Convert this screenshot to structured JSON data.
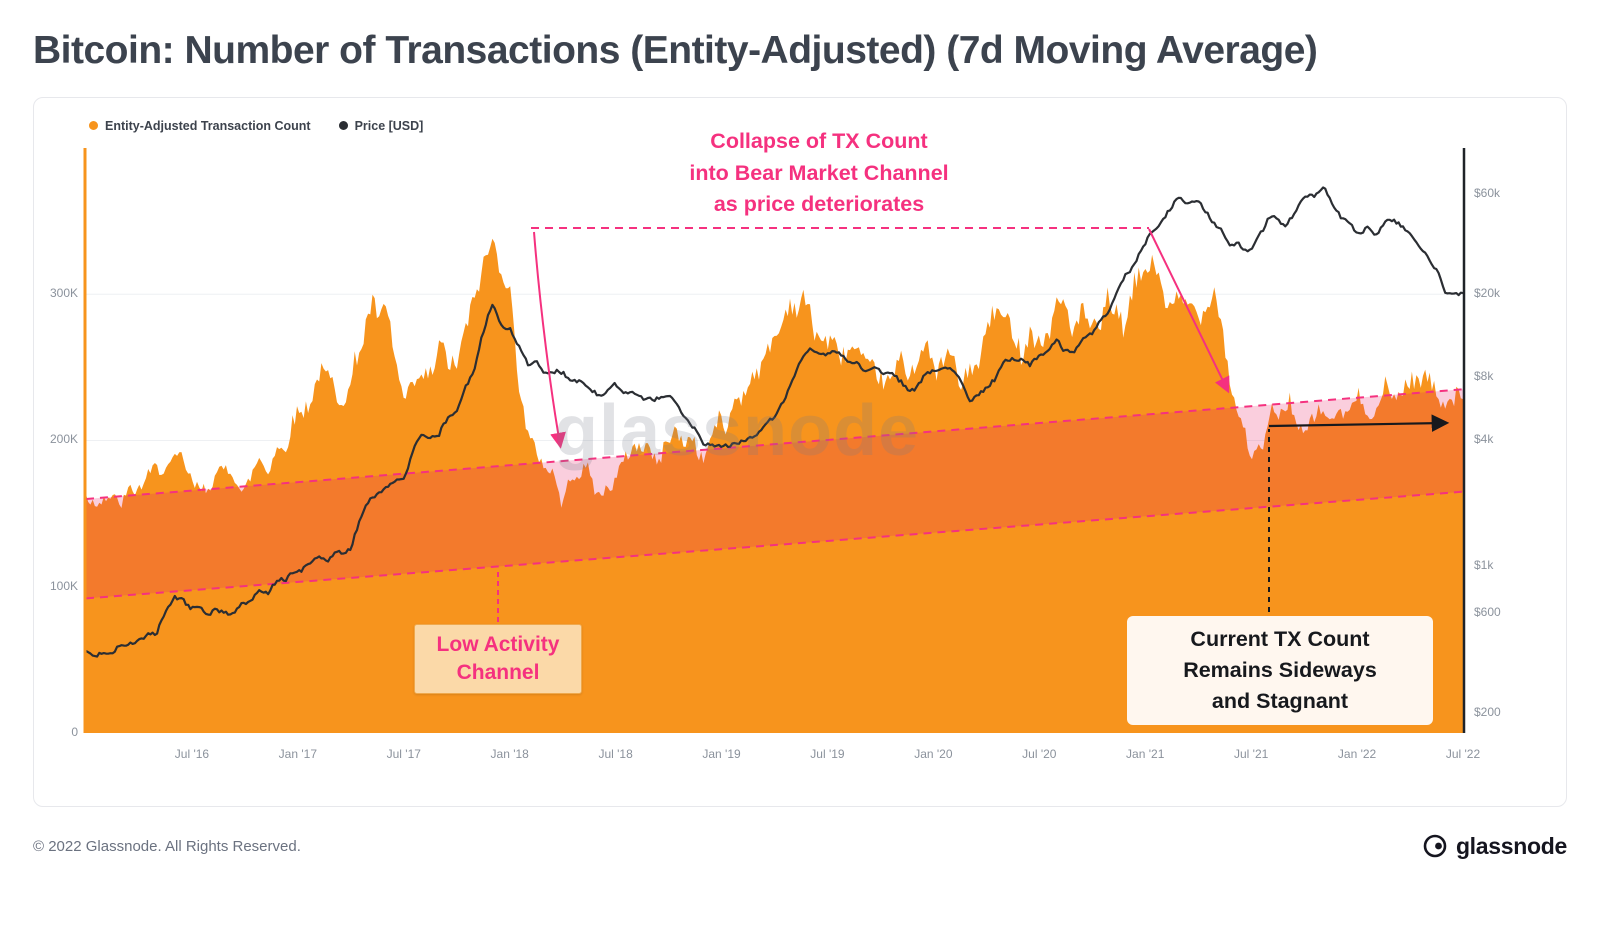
{
  "page": {
    "title": "Bitcoin: Number of Transactions (Entity-Adjusted) (7d Moving Average)"
  },
  "watermark": "glassnode",
  "footer": {
    "copyright": "© 2022 Glassnode. All Rights Reserved.",
    "brand": "glassnode"
  },
  "chart_data": {
    "type": "area+line",
    "title": "Bitcoin: Number of Transactions (Entity-Adjusted) (7d Moving Average)",
    "legend": [
      {
        "label": "Entity-Adjusted Transaction Count",
        "color": "#f7941d"
      },
      {
        "label": "Price [USD]",
        "color": "#2b2e33"
      }
    ],
    "x_axis": {
      "ticks": [
        {
          "label": "Jul '16",
          "t": 2016.5
        },
        {
          "label": "Jan '17",
          "t": 2017.0
        },
        {
          "label": "Jul '17",
          "t": 2017.5
        },
        {
          "label": "Jan '18",
          "t": 2018.0
        },
        {
          "label": "Jul '18",
          "t": 2018.5
        },
        {
          "label": "Jan '19",
          "t": 2019.0
        },
        {
          "label": "Jul '19",
          "t": 2019.5
        },
        {
          "label": "Jan '20",
          "t": 2020.0
        },
        {
          "label": "Jul '20",
          "t": 2020.5
        },
        {
          "label": "Jan '21",
          "t": 2021.0
        },
        {
          "label": "Jul '21",
          "t": 2021.5
        },
        {
          "label": "Jan '22",
          "t": 2022.0
        },
        {
          "label": "Jul '22",
          "t": 2022.5
        }
      ]
    },
    "left_axis": {
      "unit": "thousand transactions (7d MA)",
      "max": 400,
      "ticks": [
        {
          "label": "0",
          "v": 0
        },
        {
          "label": "100K",
          "v": 100
        },
        {
          "label": "200K",
          "v": 200
        },
        {
          "label": "300K",
          "v": 300
        }
      ]
    },
    "right_axis": {
      "scale": "log",
      "min": 160,
      "max": 100000,
      "ticks": [
        {
          "label": "$60k",
          "v": 60000
        },
        {
          "label": "$20k",
          "v": 20000
        },
        {
          "label": "$8k",
          "v": 8000
        },
        {
          "label": "$4k",
          "v": 4000
        },
        {
          "label": "$1k",
          "v": 1000
        },
        {
          "label": "$600",
          "v": 600
        },
        {
          "label": "$200",
          "v": 200
        }
      ]
    },
    "series": [
      {
        "name": "Entity-Adjusted Transaction Count",
        "axis": "left",
        "color": "#f7941d",
        "unit": "K",
        "points": [
          [
            "2016-01",
            160
          ],
          [
            "2016-02",
            155
          ],
          [
            "2016-03",
            162
          ],
          [
            "2016-04",
            170
          ],
          [
            "2016-05",
            175
          ],
          [
            "2016-06",
            190
          ],
          [
            "2016-07",
            168
          ],
          [
            "2016-08",
            174
          ],
          [
            "2016-09",
            178
          ],
          [
            "2016-10",
            172
          ],
          [
            "2016-11",
            184
          ],
          [
            "2016-12",
            196
          ],
          [
            "2017-01",
            228
          ],
          [
            "2017-02",
            238
          ],
          [
            "2017-03",
            245
          ],
          [
            "2017-04",
            235
          ],
          [
            "2017-05",
            282
          ],
          [
            "2017-06",
            292
          ],
          [
            "2017-07",
            240
          ],
          [
            "2017-08",
            238
          ],
          [
            "2017-09",
            262
          ],
          [
            "2017-10",
            258
          ],
          [
            "2017-11",
            285
          ],
          [
            "2017-12",
            347
          ],
          [
            "2018-01",
            310
          ],
          [
            "2018-02",
            200
          ],
          [
            "2018-03",
            178
          ],
          [
            "2018-04",
            162
          ],
          [
            "2018-05",
            178
          ],
          [
            "2018-06",
            168
          ],
          [
            "2018-07",
            182
          ],
          [
            "2018-08",
            196
          ],
          [
            "2018-09",
            188
          ],
          [
            "2018-10",
            196
          ],
          [
            "2018-11",
            202
          ],
          [
            "2018-12",
            192
          ],
          [
            "2019-01",
            212
          ],
          [
            "2019-02",
            222
          ],
          [
            "2019-03",
            242
          ],
          [
            "2019-04",
            272
          ],
          [
            "2019-05",
            296
          ],
          [
            "2019-06",
            288
          ],
          [
            "2019-07",
            262
          ],
          [
            "2019-08",
            248
          ],
          [
            "2019-09",
            252
          ],
          [
            "2019-10",
            246
          ],
          [
            "2019-11",
            252
          ],
          [
            "2019-12",
            248
          ],
          [
            "2020-01",
            258
          ],
          [
            "2020-02",
            252
          ],
          [
            "2020-03",
            238
          ],
          [
            "2020-04",
            272
          ],
          [
            "2020-05",
            292
          ],
          [
            "2020-06",
            268
          ],
          [
            "2020-07",
            272
          ],
          [
            "2020-08",
            288
          ],
          [
            "2020-09",
            278
          ],
          [
            "2020-10",
            282
          ],
          [
            "2020-11",
            288
          ],
          [
            "2020-12",
            292
          ],
          [
            "2021-01",
            312
          ],
          [
            "2021-02",
            298
          ],
          [
            "2021-03",
            292
          ],
          [
            "2021-04",
            302
          ],
          [
            "2021-05",
            295
          ],
          [
            "2021-06",
            235
          ],
          [
            "2021-07",
            196
          ],
          [
            "2021-08",
            208
          ],
          [
            "2021-09",
            218
          ],
          [
            "2021-10",
            212
          ],
          [
            "2021-11",
            222
          ],
          [
            "2021-12",
            218
          ],
          [
            "2022-01",
            226
          ],
          [
            "2022-02",
            222
          ],
          [
            "2022-03",
            232
          ],
          [
            "2022-04",
            238
          ],
          [
            "2022-05",
            242
          ],
          [
            "2022-06",
            232
          ],
          [
            "2022-07",
            238
          ]
        ]
      },
      {
        "name": "Price [USD]",
        "axis": "right",
        "color": "#2b2e33",
        "unit": "USD",
        "points": [
          [
            "2016-01",
            390
          ],
          [
            "2016-02",
            400
          ],
          [
            "2016-03",
            415
          ],
          [
            "2016-04",
            450
          ],
          [
            "2016-05",
            470
          ],
          [
            "2016-06",
            690
          ],
          [
            "2016-07",
            655
          ],
          [
            "2016-08",
            580
          ],
          [
            "2016-09",
            608
          ],
          [
            "2016-10",
            640
          ],
          [
            "2016-11",
            735
          ],
          [
            "2016-12",
            905
          ],
          [
            "2017-01",
            920
          ],
          [
            "2017-02",
            1060
          ],
          [
            "2017-03",
            1150
          ],
          [
            "2017-04",
            1270
          ],
          [
            "2017-05",
            2050
          ],
          [
            "2017-06",
            2550
          ],
          [
            "2017-07",
            2600
          ],
          [
            "2017-08",
            4300
          ],
          [
            "2017-09",
            4100
          ],
          [
            "2017-10",
            5800
          ],
          [
            "2017-11",
            8200
          ],
          [
            "2017-12",
            16800
          ],
          [
            "2018-01",
            12800
          ],
          [
            "2018-02",
            9600
          ],
          [
            "2018-03",
            8600
          ],
          [
            "2018-04",
            8100
          ],
          [
            "2018-05",
            7900
          ],
          [
            "2018-06",
            6500
          ],
          [
            "2018-07",
            7100
          ],
          [
            "2018-08",
            6700
          ],
          [
            "2018-09",
            6600
          ],
          [
            "2018-10",
            6400
          ],
          [
            "2018-11",
            5100
          ],
          [
            "2018-12",
            3700
          ],
          [
            "2019-01",
            3550
          ],
          [
            "2019-02",
            3850
          ],
          [
            "2019-03",
            4000
          ],
          [
            "2019-04",
            5300
          ],
          [
            "2019-05",
            7600
          ],
          [
            "2019-06",
            11200
          ],
          [
            "2019-07",
            10300
          ],
          [
            "2019-08",
            10100
          ],
          [
            "2019-09",
            8600
          ],
          [
            "2019-10",
            8600
          ],
          [
            "2019-11",
            7700
          ],
          [
            "2019-12",
            7200
          ],
          [
            "2020-01",
            8600
          ],
          [
            "2020-02",
            9400
          ],
          [
            "2020-03",
            5900
          ],
          [
            "2020-04",
            7200
          ],
          [
            "2020-05",
            9300
          ],
          [
            "2020-06",
            9400
          ],
          [
            "2020-07",
            10000
          ],
          [
            "2020-08",
            11600
          ],
          [
            "2020-09",
            10600
          ],
          [
            "2020-10",
            13200
          ],
          [
            "2020-11",
            17800
          ],
          [
            "2020-12",
            26000
          ],
          [
            "2021-01",
            34000
          ],
          [
            "2021-02",
            46000
          ],
          [
            "2021-03",
            56000
          ],
          [
            "2021-04",
            58500
          ],
          [
            "2021-05",
            43000
          ],
          [
            "2021-06",
            34500
          ],
          [
            "2021-07",
            33500
          ],
          [
            "2021-08",
            46000
          ],
          [
            "2021-09",
            44500
          ],
          [
            "2021-10",
            60000
          ],
          [
            "2021-11",
            62500
          ],
          [
            "2021-12",
            48500
          ],
          [
            "2022-01",
            40500
          ],
          [
            "2022-02",
            40000
          ],
          [
            "2022-03",
            44500
          ],
          [
            "2022-04",
            41000
          ],
          [
            "2022-05",
            31000
          ],
          [
            "2022-06",
            21500
          ],
          [
            "2022-07",
            19800
          ]
        ]
      }
    ],
    "annotations": {
      "collapse": {
        "text": "Collapse of TX Count\ninto Bear Market Channel\nas price deteriorates",
        "color": "#f5317f"
      },
      "low_activity": {
        "text": "Low Activity\nChannel",
        "color": "#f5317f"
      },
      "current": {
        "text": "Current TX Count\nRemains Sideways\nand Stagnant",
        "color": "#17191d"
      },
      "channel": {
        "name": "Low Activity Channel",
        "from": "2016-01",
        "to": "2022-07",
        "lower": [
          92,
          165
        ],
        "upper": [
          160,
          235
        ],
        "unit": "K",
        "line": "#f5317f",
        "fill": "rgba(233,30,99,0.22)"
      }
    }
  }
}
